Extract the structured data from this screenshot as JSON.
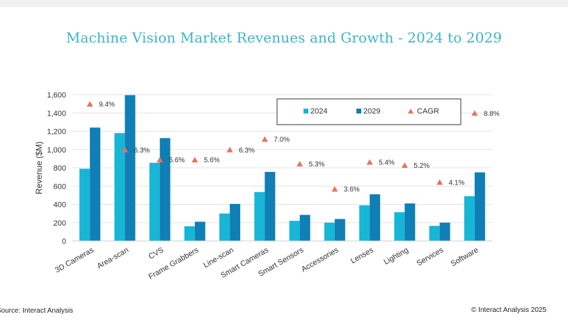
{
  "page": {
    "title": "Machine Vision Market Revenues and Growth - 2024 to 2029",
    "source": "Source: Interact Analysis",
    "copyright": "© Interact Analysis 2025"
  },
  "colors": {
    "series_2024": "#17b6d6",
    "series_2029": "#0f7fb5",
    "cagr": "#e8735a",
    "title": "#3fb3c8",
    "grid": "#e3e3e3"
  },
  "chart_data": {
    "type": "bar",
    "title": "Machine Vision Market Revenues and Growth - 2024 to 2029",
    "xlabel": "",
    "ylabel": "Revenue ($M)",
    "ylim": [
      0,
      1600
    ],
    "yticks": [
      0,
      200,
      400,
      600,
      800,
      1000,
      1200,
      1400,
      1600
    ],
    "ytick_labels": [
      "0",
      "200",
      "400",
      "600",
      "800",
      "1,000",
      "1,200",
      "1,400",
      "1,600"
    ],
    "grid": true,
    "legend_position": "top-right",
    "categories": [
      "3D Cameras",
      "Area-scan",
      "CVS",
      "Frame Grabbers",
      "Line-scan",
      "Smart Cameras",
      "Smart Sensors",
      "Accessories",
      "Lenses",
      "Lighting",
      "Services",
      "Software"
    ],
    "series": [
      {
        "name": "2024",
        "values": [
          790,
          1180,
          855,
          160,
          300,
          535,
          220,
          200,
          390,
          315,
          165,
          490
        ]
      },
      {
        "name": "2029",
        "values": [
          1240,
          1595,
          1125,
          210,
          405,
          755,
          285,
          240,
          510,
          410,
          200,
          750
        ]
      }
    ],
    "cagr": {
      "name": "CAGR",
      "values": [
        9.4,
        6.3,
        5.6,
        5.6,
        6.3,
        7.0,
        5.3,
        3.6,
        5.4,
        5.2,
        4.1,
        8.8
      ],
      "labels": [
        "9.4%",
        "6.3%",
        "5.6%",
        "5.6%",
        "6.3%",
        "7.0%",
        "5.3%",
        "3.6%",
        "5.4%",
        "5.2%",
        "4.1%",
        "8.8%"
      ],
      "marker_level_revenue": [
        1500,
        1000,
        890,
        890,
        1000,
        1115,
        845,
        570,
        865,
        830,
        645,
        1400
      ]
    }
  }
}
